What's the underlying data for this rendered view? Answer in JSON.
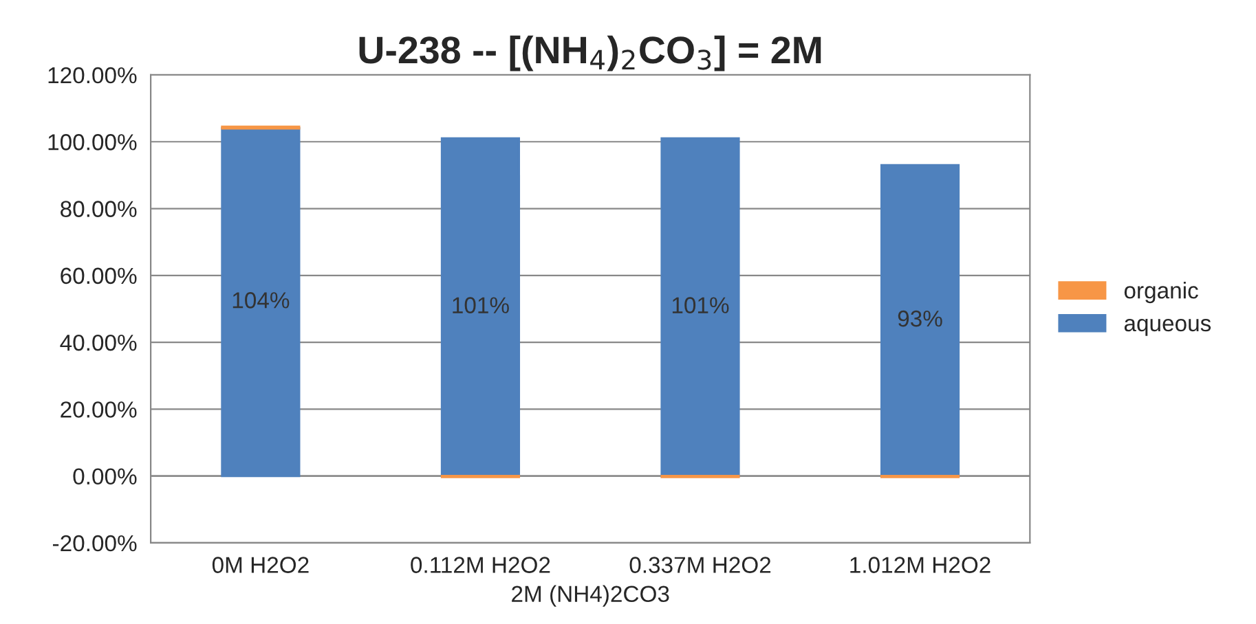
{
  "chart_data": {
    "type": "bar",
    "title": "U-238 -- [(NH$_{4}$)$_{2}$CO$_{3}$] = 2M",
    "xlabel": "2M (NH4)2CO3",
    "categories": [
      "0M H2O2",
      "0.112M H2O2",
      "0.337M H2O2",
      "1.012M H2O2"
    ],
    "stacked": true,
    "series": [
      {
        "name": "aqueous",
        "color": "#4f81bd",
        "values": [
          104,
          101,
          101,
          93
        ],
        "value_labels": [
          "104%",
          "101%",
          "101%",
          "93%"
        ]
      },
      {
        "name": "organic",
        "color": "#f79646",
        "values": [
          0.5,
          -0.3,
          -0.3,
          -0.3
        ]
      }
    ],
    "ylim": [
      -20,
      120
    ],
    "yticks": [
      {
        "value": -20,
        "label": "-20.00%"
      },
      {
        "value": 0,
        "label": "0.00%"
      },
      {
        "value": 20,
        "label": "20.00%"
      },
      {
        "value": 40,
        "label": "40.00%"
      },
      {
        "value": 60,
        "label": "60.00%"
      },
      {
        "value": 80,
        "label": "80.00%"
      },
      {
        "value": 100,
        "label": "100.00%"
      },
      {
        "value": 120,
        "label": "120.00%"
      }
    ],
    "grid": "y",
    "legend": "right"
  }
}
